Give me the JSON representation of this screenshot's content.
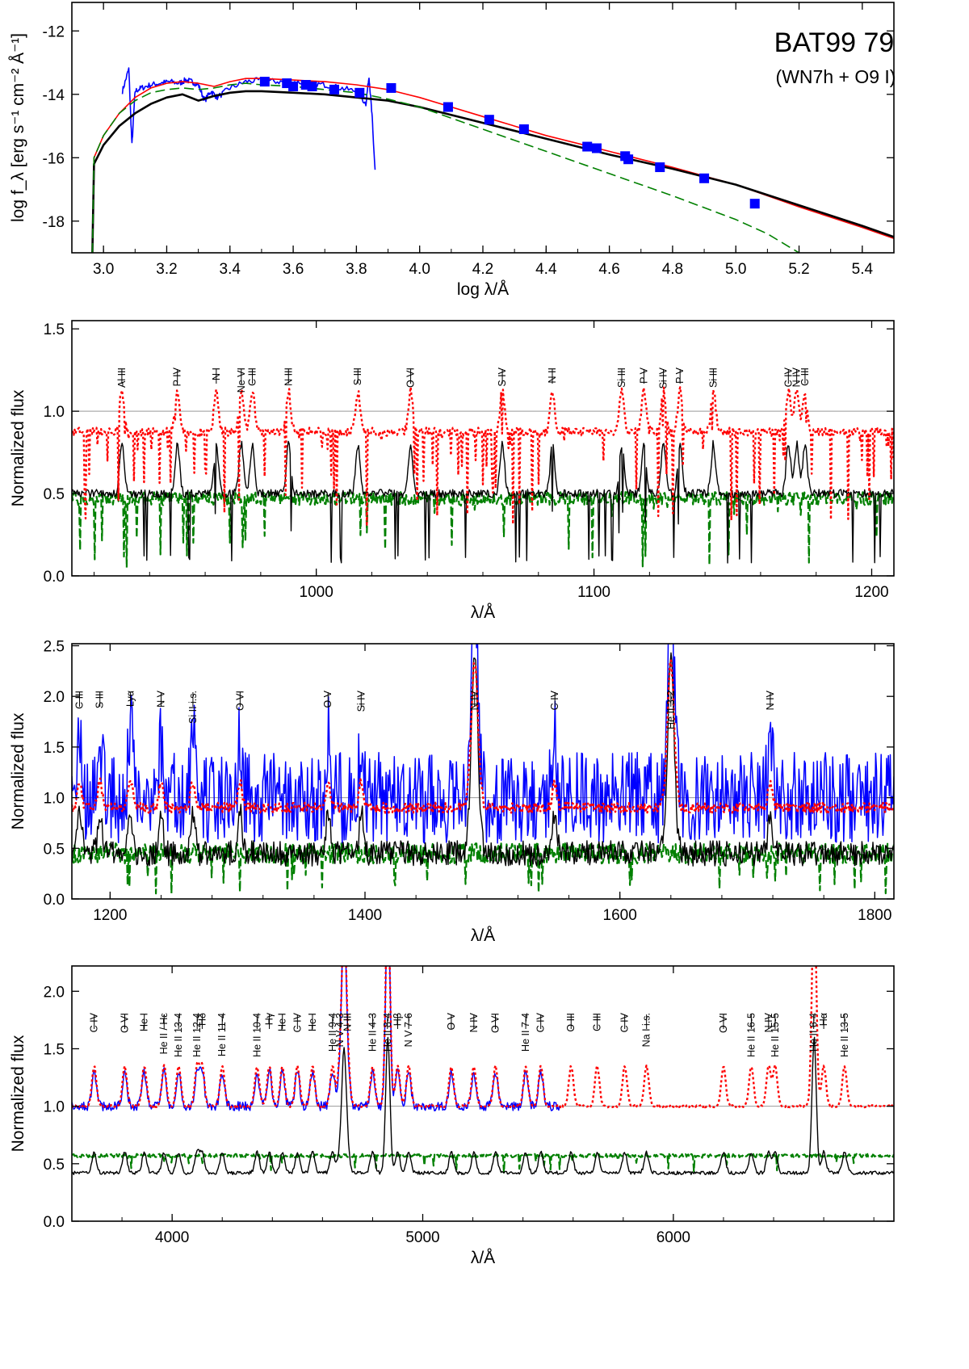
{
  "figure": {
    "title": "BAT99 79",
    "subtitle": "(WN7h + O9 I)"
  },
  "chart_data": [
    {
      "type": "line",
      "panel": "sed",
      "xlabel": "log λ/Å",
      "ylabel": "log f_λ [erg s⁻¹ cm⁻² Å⁻¹]",
      "xlim": [
        2.9,
        5.5
      ],
      "ylim": [
        -19,
        -11.1
      ],
      "xticks": [
        3.0,
        3.2,
        3.4,
        3.6,
        3.8,
        4.0,
        4.2,
        4.4,
        4.6,
        4.8,
        5.0,
        5.2,
        5.4
      ],
      "xtick_labels": [
        "3.0",
        "3.2",
        "3.4",
        "3.6",
        "3.8",
        "4.0",
        "4.2",
        "4.4",
        "4.6",
        "4.8",
        "5.0",
        "5.2",
        "5.4"
      ],
      "yticks": [
        -18,
        -16,
        -14,
        -12
      ],
      "ytick_labels": [
        "-18",
        "-16",
        "-14",
        "-12"
      ],
      "series": [
        {
          "role": "observed-spectrum",
          "color": "#0000ff",
          "x": [
            3.06,
            3.08,
            3.09,
            3.1,
            3.12,
            3.15,
            3.18,
            3.21,
            3.24,
            3.26,
            3.28,
            3.3,
            3.32,
            3.34,
            3.36,
            3.4,
            3.45,
            3.5,
            3.55,
            3.6,
            3.65,
            3.7,
            3.75,
            3.8,
            3.83,
            3.84,
            3.85,
            3.86
          ],
          "y": [
            -13.9,
            -13.2,
            -15.6,
            -13.9,
            -13.8,
            -13.7,
            -13.65,
            -13.6,
            -13.65,
            -13.55,
            -13.6,
            -13.7,
            -14.2,
            -13.9,
            -14.1,
            -13.8,
            -13.6,
            -13.55,
            -13.6,
            -13.6,
            -13.65,
            -13.7,
            -13.8,
            -13.9,
            -14.3,
            -13.4,
            -14.8,
            -16.6
          ]
        },
        {
          "role": "total-model",
          "color": "#ff0000",
          "x": [
            2.965,
            2.97,
            3.0,
            3.05,
            3.1,
            3.15,
            3.2,
            3.25,
            3.3,
            3.35,
            3.4,
            3.45,
            3.5,
            3.6,
            3.7,
            3.8,
            3.9,
            4.0,
            4.2,
            4.4,
            4.6,
            4.8,
            5.0,
            5.2,
            5.4,
            5.5
          ],
          "y": [
            -19.0,
            -16.0,
            -15.3,
            -14.6,
            -14.1,
            -13.8,
            -13.65,
            -13.6,
            -13.65,
            -13.75,
            -13.6,
            -13.5,
            -13.5,
            -13.55,
            -13.6,
            -13.7,
            -13.85,
            -14.1,
            -14.7,
            -15.3,
            -15.8,
            -16.3,
            -16.85,
            -17.55,
            -18.2,
            -18.55
          ]
        },
        {
          "role": "wr-model",
          "color": "#000000",
          "x": [
            2.965,
            2.97,
            3.0,
            3.05,
            3.1,
            3.15,
            3.2,
            3.25,
            3.3,
            3.35,
            3.4,
            3.45,
            3.5,
            3.6,
            3.7,
            3.8,
            3.9,
            4.0,
            4.2,
            4.4,
            4.6,
            4.8,
            5.0,
            5.2,
            5.4,
            5.5
          ],
          "y": [
            -19.0,
            -16.2,
            -15.6,
            -15.0,
            -14.6,
            -14.3,
            -14.1,
            -14.0,
            -14.2,
            -14.05,
            -13.95,
            -13.9,
            -13.9,
            -13.95,
            -14.0,
            -14.1,
            -14.2,
            -14.4,
            -14.9,
            -15.4,
            -15.9,
            -16.35,
            -16.85,
            -17.5,
            -18.15,
            -18.5
          ]
        },
        {
          "role": "o-star-model",
          "color": "#008000",
          "dashed": true,
          "x": [
            2.965,
            2.97,
            3.0,
            3.05,
            3.1,
            3.15,
            3.2,
            3.25,
            3.3,
            3.35,
            3.4,
            3.45,
            3.5,
            3.6,
            3.7,
            3.8,
            3.9,
            4.0,
            4.2,
            4.4,
            4.6,
            4.8,
            5.0,
            5.1,
            5.2
          ],
          "y": [
            -19.0,
            -16.0,
            -15.3,
            -14.6,
            -14.2,
            -13.95,
            -13.85,
            -13.8,
            -13.85,
            -13.8,
            -13.7,
            -13.65,
            -13.7,
            -13.75,
            -13.85,
            -13.95,
            -14.15,
            -14.4,
            -15.1,
            -15.8,
            -16.5,
            -17.2,
            -17.95,
            -18.4,
            -19.0
          ]
        },
        {
          "role": "photometry",
          "type": "scatter",
          "color": "#0000ff",
          "x": [
            3.51,
            3.58,
            3.6,
            3.64,
            3.66,
            3.73,
            3.81,
            3.91,
            4.09,
            4.22,
            4.33,
            4.53,
            4.56,
            4.65,
            4.66,
            4.76,
            4.9,
            5.06
          ],
          "y": [
            -13.6,
            -13.65,
            -13.75,
            -13.7,
            -13.75,
            -13.85,
            -13.95,
            -13.8,
            -14.4,
            -14.8,
            -15.1,
            -15.65,
            -15.7,
            -15.95,
            -16.05,
            -16.3,
            -16.65,
            -17.45
          ]
        }
      ]
    },
    {
      "type": "line",
      "panel": "fuv",
      "xlabel": "λ/Å",
      "ylabel": "Normalized flux",
      "xlim": [
        912,
        1208
      ],
      "ylim": [
        0,
        1.55
      ],
      "xticks": [
        1000,
        1100,
        1200
      ],
      "xtick_labels": [
        "1000",
        "1100",
        "1200"
      ],
      "yticks": [
        0,
        0.5,
        1.0,
        1.5
      ],
      "ytick_labels": [
        "0.0",
        "0.5",
        "1.0",
        "1.5"
      ],
      "line_labels": [
        {
          "text": "Al III",
          "x": 930
        },
        {
          "text": "P IV",
          "x": 950
        },
        {
          "text": "N I",
          "x": 964
        },
        {
          "text": "Ne VI",
          "x": 973
        },
        {
          "text": "C III",
          "x": 977
        },
        {
          "text": "N III",
          "x": 990
        },
        {
          "text": "S III",
          "x": 1015
        },
        {
          "text": "O VI",
          "x": 1034
        },
        {
          "text": "S IV",
          "x": 1067
        },
        {
          "text": "N II",
          "x": 1085
        },
        {
          "text": "Si III",
          "x": 1110
        },
        {
          "text": "P V",
          "x": 1118
        },
        {
          "text": "Si IV",
          "x": 1125
        },
        {
          "text": "P V",
          "x": 1131
        },
        {
          "text": "Si III",
          "x": 1143
        },
        {
          "text": "C IV",
          "x": 1170
        },
        {
          "text": "N IV",
          "x": 1173
        },
        {
          "text": "C III",
          "x": 1176
        }
      ]
    },
    {
      "type": "line",
      "panel": "uv",
      "xlabel": "λ/Å",
      "ylabel": "Normalized flux",
      "xlim": [
        1170,
        1815
      ],
      "ylim": [
        0,
        2.52
      ],
      "xticks": [
        1200,
        1400,
        1600,
        1800
      ],
      "xtick_labels": [
        "1200",
        "1400",
        "1600",
        "1800"
      ],
      "yticks": [
        0,
        0.5,
        1.0,
        1.5,
        2.0,
        2.5
      ],
      "ytick_labels": [
        "0.0",
        "0.5",
        "1.0",
        "1.5",
        "2.0",
        "2.5"
      ],
      "line_labels": [
        {
          "text": "C III",
          "x": 1176
        },
        {
          "text": "S III",
          "x": 1192
        },
        {
          "text": "Lyα",
          "x": 1216
        },
        {
          "text": "N V",
          "x": 1240
        },
        {
          "text": "Si II i.s.",
          "x": 1265
        },
        {
          "text": "O VI",
          "x": 1302
        },
        {
          "text": "O V",
          "x": 1371
        },
        {
          "text": "Si IV",
          "x": 1397
        },
        {
          "text": "N IV",
          "x": 1486
        },
        {
          "text": "C IV",
          "x": 1549
        },
        {
          "text": "He II 3-2",
          "x": 1640
        },
        {
          "text": "N IV",
          "x": 1718
        }
      ]
    },
    {
      "type": "line",
      "panel": "optical",
      "xlabel": "λ/Å",
      "ylabel": "Normalized flux",
      "xlim": [
        3600,
        6880
      ],
      "ylim": [
        0,
        2.22
      ],
      "xticks": [
        4000,
        5000,
        6000
      ],
      "xtick_labels": [
        "4000",
        "5000",
        "6000"
      ],
      "yticks": [
        0,
        0.5,
        1.0,
        1.5,
        2.0
      ],
      "ytick_labels": [
        "0.0",
        "0.5",
        "1.0",
        "1.5",
        "2.0"
      ],
      "line_labels": [
        {
          "text": "C IV",
          "x": 3689
        },
        {
          "text": "O VI",
          "x": 3811
        },
        {
          "text": "He I",
          "x": 3889
        },
        {
          "text": "He II / Hε",
          "x": 3968
        },
        {
          "text": "He II 13-4",
          "x": 4026
        },
        {
          "text": "He II 12-4",
          "x": 4100
        },
        {
          "text": "Hδ",
          "x": 4120
        },
        {
          "text": "He II 11-4",
          "x": 4200
        },
        {
          "text": "He II 10-4",
          "x": 4339
        },
        {
          "text": "Hγ",
          "x": 4388
        },
        {
          "text": "He I",
          "x": 4440
        },
        {
          "text": "C IV",
          "x": 4500
        },
        {
          "text": "He I",
          "x": 4560
        },
        {
          "text": "He II 9-4",
          "x": 4640
        },
        {
          "text": "N V 4-3",
          "x": 4670
        },
        {
          "text": "N III",
          "x": 4700
        },
        {
          "text": "He II 4-3",
          "x": 4800
        },
        {
          "text": "He II 8-4",
          "x": 4859
        },
        {
          "text": "Hβ",
          "x": 4900
        },
        {
          "text": "N V 7-6",
          "x": 4944
        },
        {
          "text": "O V",
          "x": 5114
        },
        {
          "text": "N IV",
          "x": 5204
        },
        {
          "text": "O VI",
          "x": 5290
        },
        {
          "text": "He II 7-4",
          "x": 5411
        },
        {
          "text": "C IV",
          "x": 5471
        },
        {
          "text": "O III",
          "x": 5592
        },
        {
          "text": "C III",
          "x": 5696
        },
        {
          "text": "C IV",
          "x": 5806
        },
        {
          "text": "Na I i.s.",
          "x": 5893
        },
        {
          "text": "O VI",
          "x": 6200
        },
        {
          "text": "He II 16-5",
          "x": 6311
        },
        {
          "text": "N IV",
          "x": 6380
        },
        {
          "text": "He II 15-5",
          "x": 6406
        },
        {
          "text": "He II 6-4",
          "x": 6560
        },
        {
          "text": "Hα",
          "x": 6600
        },
        {
          "text": "He II 13-5",
          "x": 6683
        }
      ]
    }
  ]
}
